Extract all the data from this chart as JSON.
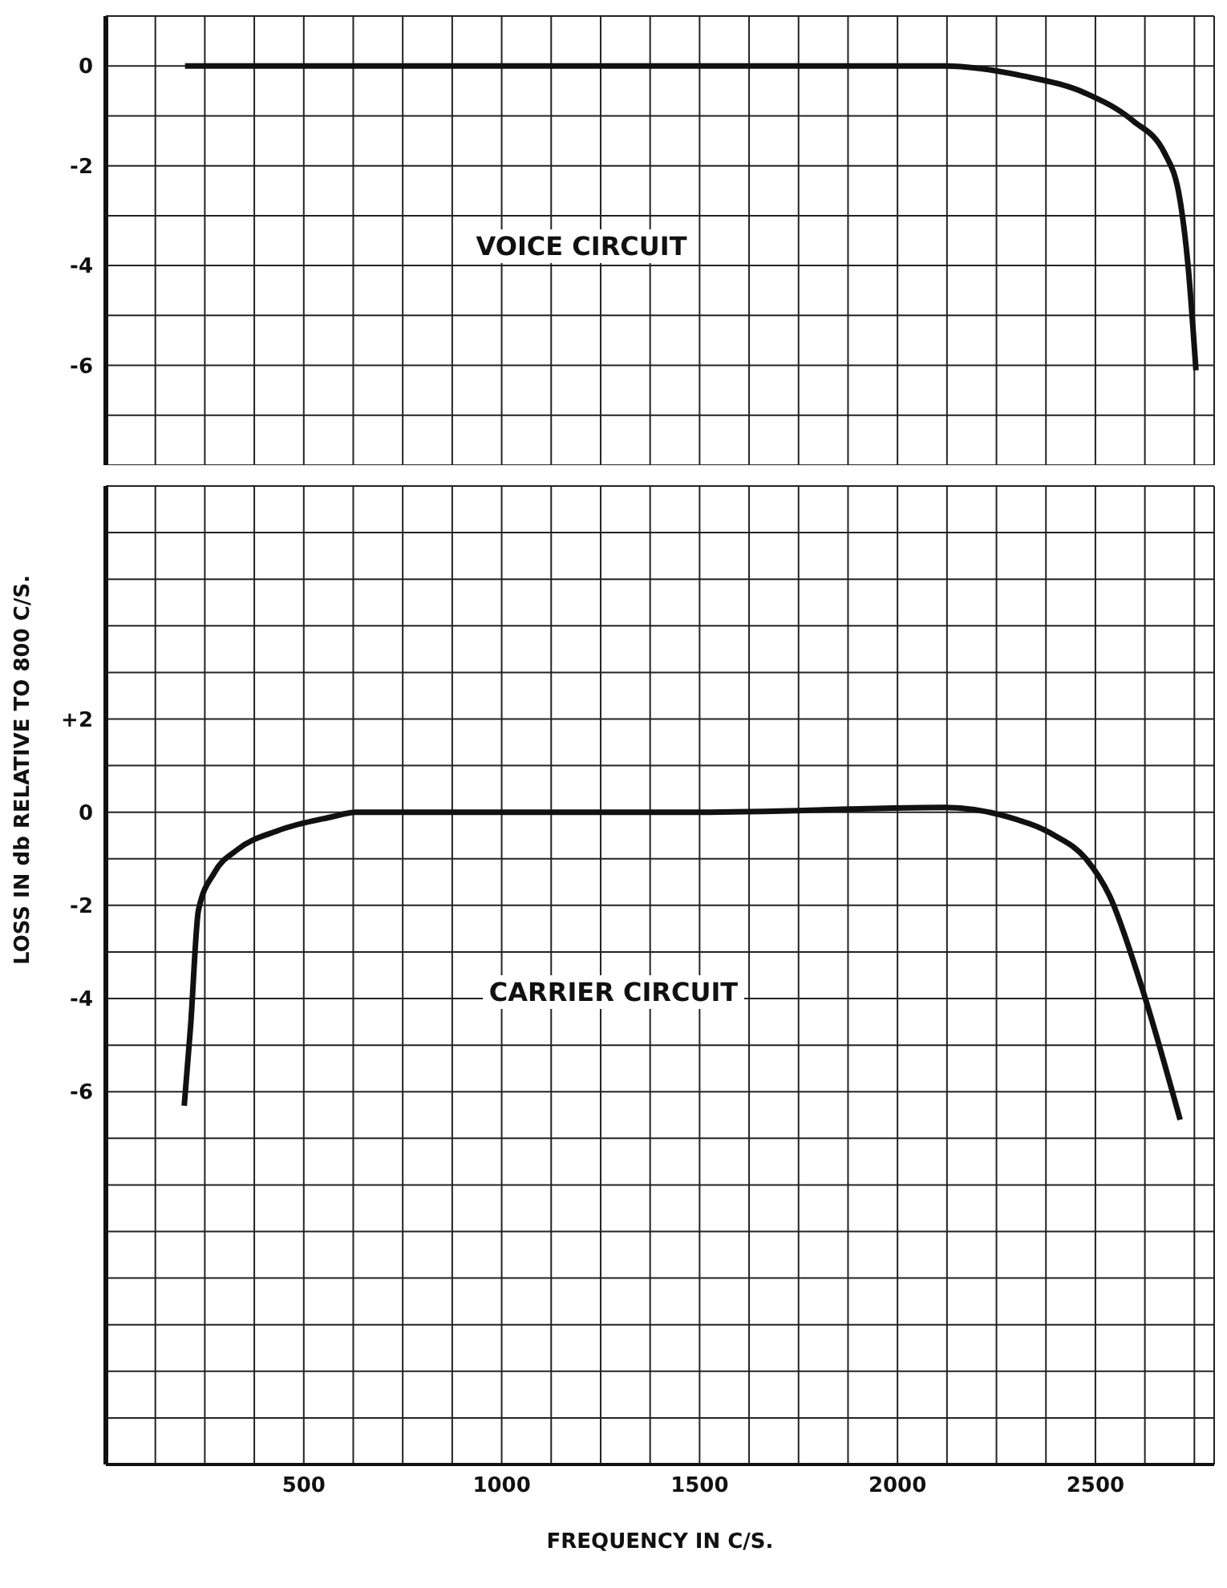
{
  "chart_data": [
    {
      "type": "line",
      "x": [
        200,
        600,
        1000,
        1500,
        2119,
        2317,
        2476,
        2595,
        2675,
        2714,
        2734,
        2754
      ],
      "values": [
        0,
        0,
        0,
        0,
        0,
        -0.2,
        -0.55,
        -1.1,
        -1.75,
        -2.7,
        -4.0,
        -6.1
      ],
      "color": "#111111",
      "marker": "none",
      "line_style": "solid",
      "grid": true,
      "tick_labels": "y",
      "xlim": [
        0,
        2800
      ],
      "ylim": [
        -8,
        1
      ],
      "xticks": [
        {
          "value": 125,
          "label": null
        },
        {
          "value": 250,
          "label": null
        },
        {
          "value": 375,
          "label": null
        },
        {
          "value": 500,
          "label": null
        },
        {
          "value": 625,
          "label": null
        },
        {
          "value": 750,
          "label": null
        },
        {
          "value": 875,
          "label": null
        },
        {
          "value": 1000,
          "label": null
        },
        {
          "value": 1125,
          "label": null
        },
        {
          "value": 1250,
          "label": null
        },
        {
          "value": 1375,
          "label": null
        },
        {
          "value": 1500,
          "label": null
        },
        {
          "value": 1625,
          "label": null
        },
        {
          "value": 1750,
          "label": null
        },
        {
          "value": 1875,
          "label": null
        },
        {
          "value": 2000,
          "label": null
        },
        {
          "value": 2125,
          "label": null
        },
        {
          "value": 2250,
          "label": null
        },
        {
          "value": 2375,
          "label": null
        },
        {
          "value": 2500,
          "label": null
        },
        {
          "value": 2625,
          "label": null
        },
        {
          "value": 2750,
          "label": null
        }
      ],
      "yticks": [
        {
          "value": -8,
          "label": null
        },
        {
          "value": -7,
          "label": null
        },
        -6,
        {
          "value": -5,
          "label": null
        },
        -4,
        {
          "value": -3,
          "label": null
        },
        -2,
        {
          "value": -1,
          "label": null
        },
        0,
        {
          "value": 1,
          "label": null
        }
      ],
      "annotations": [
        "VOICE CIRCUIT"
      ]
    },
    {
      "type": "line",
      "x": [
        198,
        214,
        234,
        274,
        333,
        433,
        571,
        631,
        1000,
        1500,
        2119,
        2278,
        2397,
        2476,
        2536,
        2615,
        2714
      ],
      "values": [
        -6.3,
        -4.6,
        -2.1,
        -1.3,
        -0.8,
        -0.4,
        -0.1,
        0,
        0,
        0,
        0.1,
        -0.1,
        -0.5,
        -1.0,
        -1.8,
        -3.7,
        -6.6
      ],
      "color": "#111111",
      "marker": "none",
      "line_style": "solid",
      "grid": true,
      "xlim": [
        0,
        2800
      ],
      "ylim": [
        -14,
        7
      ],
      "xlabel": "FREQUENCY IN C/S.",
      "ylabel": "LOSS IN db RELATIVE TO 800 C/S.",
      "xticks": [
        {
          "value": 125,
          "label": null
        },
        {
          "value": 250,
          "label": null
        },
        {
          "value": 375,
          "label": null
        },
        500,
        {
          "value": 625,
          "label": null
        },
        {
          "value": 750,
          "label": null
        },
        {
          "value": 875,
          "label": null
        },
        1000,
        {
          "value": 1125,
          "label": null
        },
        {
          "value": 1250,
          "label": null
        },
        {
          "value": 1375,
          "label": null
        },
        1500,
        {
          "value": 1625,
          "label": null
        },
        {
          "value": 1750,
          "label": null
        },
        {
          "value": 1875,
          "label": null
        },
        2000,
        {
          "value": 2125,
          "label": null
        },
        {
          "value": 2250,
          "label": null
        },
        {
          "value": 2375,
          "label": null
        },
        2500,
        {
          "value": 2625,
          "label": null
        },
        {
          "value": 2750,
          "label": null
        }
      ],
      "yticks": [
        {
          "value": -14,
          "label": null
        },
        {
          "value": -13,
          "label": null
        },
        {
          "value": -12,
          "label": null
        },
        {
          "value": -11,
          "label": null
        },
        {
          "value": -10,
          "label": null
        },
        {
          "value": -9,
          "label": null
        },
        {
          "value": -8,
          "label": null
        },
        {
          "value": -7,
          "label": null
        },
        -6,
        {
          "value": -5,
          "label": null
        },
        -4,
        {
          "value": -3,
          "label": null
        },
        -2,
        {
          "value": -1,
          "label": null
        },
        0,
        {
          "value": 1,
          "label": null
        },
        {
          "value": 2,
          "label": "+2"
        },
        {
          "value": 3,
          "label": null
        },
        {
          "value": 4,
          "label": null
        },
        {
          "value": 5,
          "label": null
        },
        {
          "value": 6,
          "label": null
        },
        {
          "value": 7,
          "label": null
        }
      ],
      "annotations": [
        "CARRIER CIRCUIT"
      ]
    }
  ]
}
